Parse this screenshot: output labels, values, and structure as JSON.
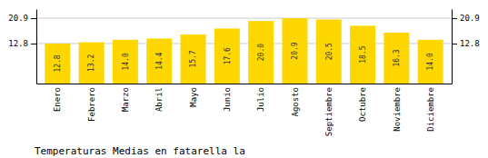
{
  "chart_data": {
    "type": "bar",
    "title": "Temperaturas Medias en fatarella la",
    "categories": [
      "Enero",
      "Febrero",
      "Marzo",
      "Abril",
      "Mayo",
      "Junio",
      "Julio",
      "Agosto",
      "Septiembre",
      "Octubre",
      "Noviembre",
      "Diciembre"
    ],
    "values": [
      12.8,
      13.2,
      14.0,
      14.4,
      15.7,
      17.6,
      20.0,
      20.9,
      20.5,
      18.5,
      16.3,
      14.0
    ],
    "value_labels": [
      "12.8",
      "13.2",
      "14.0",
      "14.4",
      "15.7",
      "17.6",
      "20.0",
      "20.9",
      "20.5",
      "18.5",
      "16.3",
      "14.0"
    ],
    "data_labels": true,
    "color": "#FFD700",
    "ylim": [
      0,
      23.826
    ],
    "yticks": [
      12.8,
      20.9
    ],
    "y2lim": [
      0,
      23.826
    ],
    "y2ticks": [
      12.8,
      20.9
    ],
    "grid": true
  }
}
